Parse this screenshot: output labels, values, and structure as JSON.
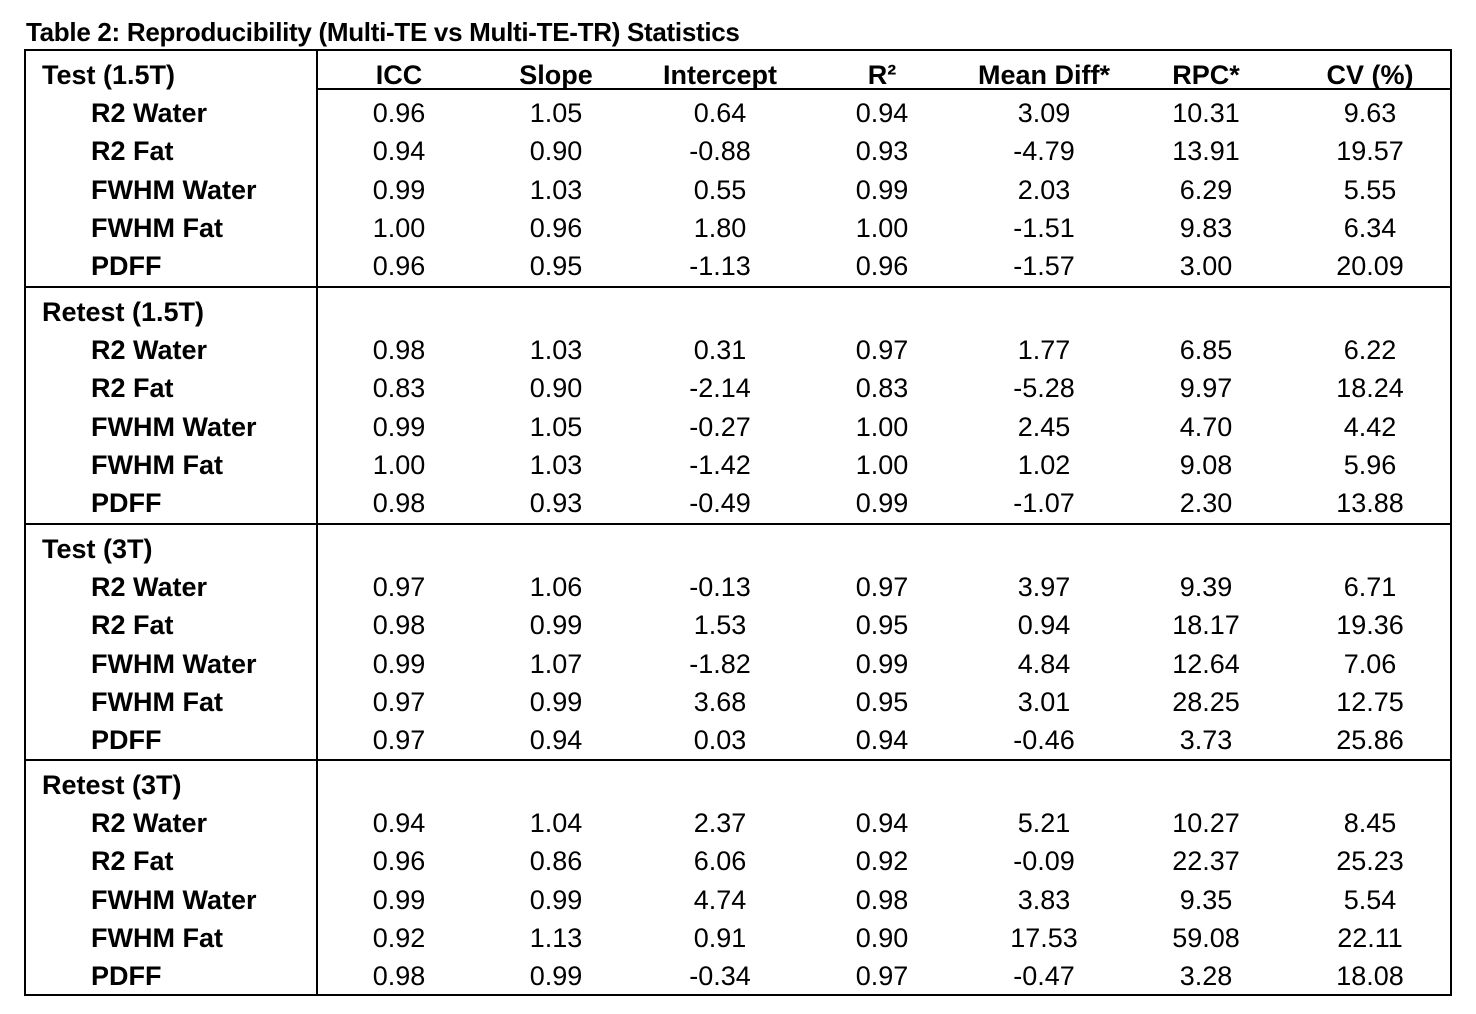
{
  "caption": "Table 2: Reproducibility (Multi-TE vs Multi-TE-TR) Statistics",
  "columns": [
    "ICC",
    "Slope",
    "Intercept",
    "R²",
    "Mean Diff*",
    "RPC*",
    "CV (%)"
  ],
  "sections": [
    {
      "label": "Test (1.5T)",
      "rows": [
        {
          "label": "R2 Water",
          "values": [
            "0.96",
            "1.05",
            "0.64",
            "0.94",
            "3.09",
            "10.31",
            "9.63"
          ]
        },
        {
          "label": "R2 Fat",
          "values": [
            "0.94",
            "0.90",
            "-0.88",
            "0.93",
            "-4.79",
            "13.91",
            "19.57"
          ]
        },
        {
          "label": "FWHM Water",
          "values": [
            "0.99",
            "1.03",
            "0.55",
            "0.99",
            "2.03",
            "6.29",
            "5.55"
          ]
        },
        {
          "label": "FWHM Fat",
          "values": [
            "1.00",
            "0.96",
            "1.80",
            "1.00",
            "-1.51",
            "9.83",
            "6.34"
          ]
        },
        {
          "label": "PDFF",
          "values": [
            "0.96",
            "0.95",
            "-1.13",
            "0.96",
            "-1.57",
            "3.00",
            "20.09"
          ]
        }
      ]
    },
    {
      "label": "Retest (1.5T)",
      "rows": [
        {
          "label": "R2 Water",
          "values": [
            "0.98",
            "1.03",
            "0.31",
            "0.97",
            "1.77",
            "6.85",
            "6.22"
          ]
        },
        {
          "label": "R2 Fat",
          "values": [
            "0.83",
            "0.90",
            "-2.14",
            "0.83",
            "-5.28",
            "9.97",
            "18.24"
          ]
        },
        {
          "label": "FWHM Water",
          "values": [
            "0.99",
            "1.05",
            "-0.27",
            "1.00",
            "2.45",
            "4.70",
            "4.42"
          ]
        },
        {
          "label": "FWHM Fat",
          "values": [
            "1.00",
            "1.03",
            "-1.42",
            "1.00",
            "1.02",
            "9.08",
            "5.96"
          ]
        },
        {
          "label": "PDFF",
          "values": [
            "0.98",
            "0.93",
            "-0.49",
            "0.99",
            "-1.07",
            "2.30",
            "13.88"
          ]
        }
      ]
    },
    {
      "label": "Test (3T)",
      "rows": [
        {
          "label": "R2 Water",
          "values": [
            "0.97",
            "1.06",
            "-0.13",
            "0.97",
            "3.97",
            "9.39",
            "6.71"
          ]
        },
        {
          "label": "R2 Fat",
          "values": [
            "0.98",
            "0.99",
            "1.53",
            "0.95",
            "0.94",
            "18.17",
            "19.36"
          ]
        },
        {
          "label": "FWHM Water",
          "values": [
            "0.99",
            "1.07",
            "-1.82",
            "0.99",
            "4.84",
            "12.64",
            "7.06"
          ]
        },
        {
          "label": "FWHM Fat",
          "values": [
            "0.97",
            "0.99",
            "3.68",
            "0.95",
            "3.01",
            "28.25",
            "12.75"
          ]
        },
        {
          "label": "PDFF",
          "values": [
            "0.97",
            "0.94",
            "0.03",
            "0.94",
            "-0.46",
            "3.73",
            "25.86"
          ]
        }
      ]
    },
    {
      "label": "Retest (3T)",
      "rows": [
        {
          "label": "R2 Water",
          "values": [
            "0.94",
            "1.04",
            "2.37",
            "0.94",
            "5.21",
            "10.27",
            "8.45"
          ]
        },
        {
          "label": "R2 Fat",
          "values": [
            "0.96",
            "0.86",
            "6.06",
            "0.92",
            "-0.09",
            "22.37",
            "25.23"
          ]
        },
        {
          "label": "FWHM Water",
          "values": [
            "0.99",
            "0.99",
            "4.74",
            "0.98",
            "3.83",
            "9.35",
            "5.54"
          ]
        },
        {
          "label": "FWHM Fat",
          "values": [
            "0.92",
            "1.13",
            "0.91",
            "0.90",
            "17.53",
            "59.08",
            "22.11"
          ]
        },
        {
          "label": "PDFF",
          "values": [
            "0.98",
            "0.99",
            "-0.34",
            "0.97",
            "-0.47",
            "3.28",
            "18.08"
          ]
        }
      ]
    }
  ]
}
